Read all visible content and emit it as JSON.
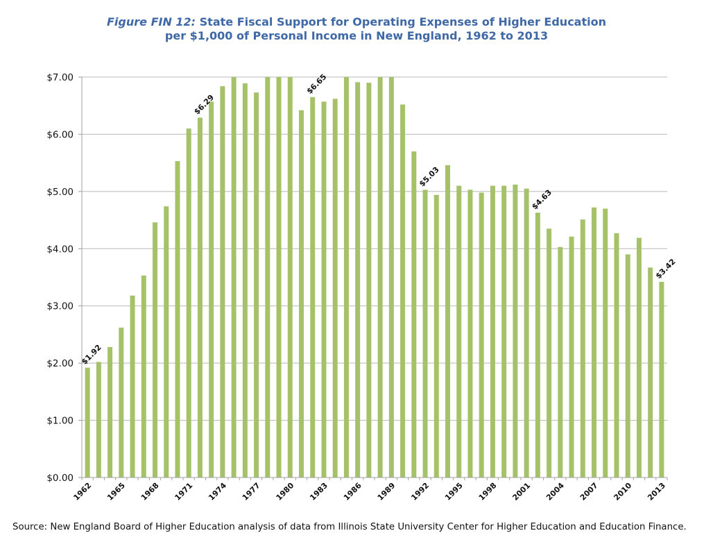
{
  "chart_data": {
    "type": "bar",
    "title_prefix": "Figure FIN 12:",
    "title_line1": "State Fiscal Support for Operating Expenses of Higher Education",
    "title_line2": "per $1,000 of Personal Income in New England, 1962 to 2013",
    "xlabel": "",
    "ylabel": "",
    "ylim": [
      0,
      7
    ],
    "yticks": [
      0,
      1,
      2,
      3,
      4,
      5,
      6,
      7
    ],
    "ytick_labels": [
      "$0.00",
      "$1.00",
      "$2.00",
      "$3.00",
      "$4.00",
      "$5.00",
      "$6.00",
      "$7.00"
    ],
    "grid": true,
    "legend": null,
    "bar_color": "#a5c26b",
    "categories": [
      1962,
      1963,
      1964,
      1965,
      1966,
      1967,
      1968,
      1969,
      1970,
      1971,
      1972,
      1973,
      1974,
      1975,
      1976,
      1977,
      1978,
      1979,
      1980,
      1981,
      1982,
      1983,
      1984,
      1985,
      1986,
      1987,
      1988,
      1989,
      1990,
      1991,
      1992,
      1993,
      1994,
      1995,
      1996,
      1997,
      1998,
      1999,
      2000,
      2001,
      2002,
      2003,
      2004,
      2005,
      2006,
      2007,
      2008,
      2009,
      2010,
      2011,
      2012,
      2013
    ],
    "xtick_labels_shown": [
      "1962",
      "1965",
      "1968",
      "1971",
      "1974",
      "1977",
      "1980",
      "1983",
      "1986",
      "1989",
      "1992",
      "1995",
      "1998",
      "2001",
      "2004",
      "2007",
      "2010",
      "2013"
    ],
    "values": [
      1.92,
      2.02,
      2.28,
      2.62,
      3.18,
      3.53,
      4.46,
      4.74,
      5.53,
      6.1,
      6.29,
      6.57,
      6.84,
      7.0,
      6.89,
      6.73,
      7.0,
      7.0,
      7.0,
      6.42,
      6.65,
      6.57,
      6.62,
      7.0,
      6.91,
      6.9,
      7.0,
      7.0,
      6.52,
      5.7,
      5.03,
      4.94,
      5.46,
      5.1,
      5.03,
      4.98,
      5.1,
      5.1,
      5.12,
      5.05,
      4.63,
      4.35,
      4.03,
      4.21,
      4.51,
      4.72,
      4.7,
      4.27,
      3.9,
      4.19,
      3.67,
      3.42
    ],
    "annotations": [
      {
        "year": 1962,
        "label": "$1.92"
      },
      {
        "year": 1972,
        "label": "$6.29"
      },
      {
        "year": 1982,
        "label": "$6.65"
      },
      {
        "year": 1992,
        "label": "$5.03"
      },
      {
        "year": 2002,
        "label": "$4.63"
      },
      {
        "year": 2013,
        "label": "$3.42"
      }
    ],
    "source": "Source: New England Board of Higher Education analysis of data from Illinois State University Center for Higher Education and Education Finance."
  }
}
